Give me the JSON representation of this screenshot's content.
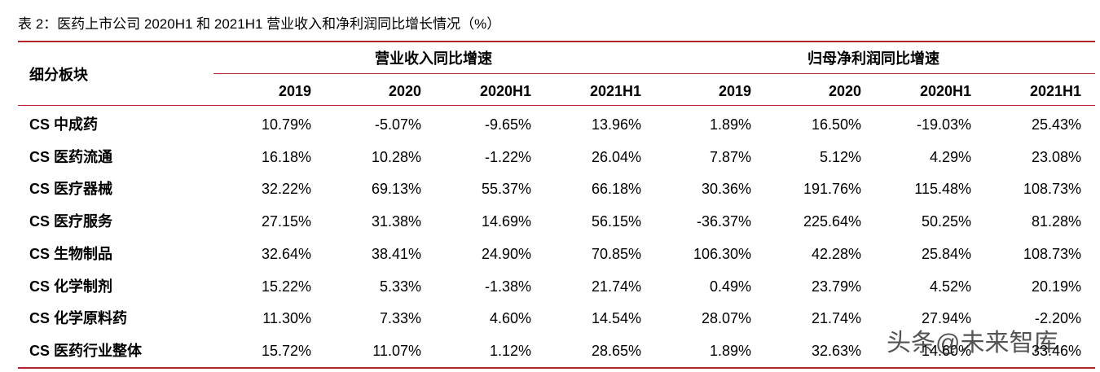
{
  "title": "表 2：医药上市公司 2020H1 和 2021H1 营业收入和净利润同比增长情况（%）",
  "table": {
    "corner_header": "细分板块",
    "group_headers": [
      "营业收入同比增速",
      "归母净利润同比增速"
    ],
    "sub_headers": [
      "2019",
      "2020",
      "2020H1",
      "2021H1",
      "2019",
      "2020",
      "2020H1",
      "2021H1"
    ],
    "rows": [
      [
        "CS 中成药",
        "10.79%",
        "-5.07%",
        "-9.65%",
        "13.96%",
        "1.89%",
        "16.50%",
        "-19.03%",
        "25.43%"
      ],
      [
        "CS 医药流通",
        "16.18%",
        "10.28%",
        "-1.22%",
        "26.04%",
        "7.87%",
        "5.12%",
        "4.29%",
        "23.08%"
      ],
      [
        "CS 医疗器械",
        "32.22%",
        "69.13%",
        "55.37%",
        "66.18%",
        "30.36%",
        "191.76%",
        "115.48%",
        "108.73%"
      ],
      [
        "CS 医疗服务",
        "27.15%",
        "31.38%",
        "14.69%",
        "56.15%",
        "-36.37%",
        "225.64%",
        "50.25%",
        "81.28%"
      ],
      [
        "CS 生物制品",
        "32.64%",
        "38.41%",
        "24.90%",
        "70.85%",
        "106.30%",
        "42.28%",
        "25.84%",
        "108.73%"
      ],
      [
        "CS 化学制剂",
        "15.22%",
        "5.33%",
        "-1.38%",
        "21.74%",
        "0.49%",
        "23.79%",
        "4.52%",
        "20.19%"
      ],
      [
        "CS 化学原料药",
        "11.30%",
        "7.33%",
        "4.60%",
        "14.54%",
        "28.07%",
        "21.74%",
        "27.94%",
        "-2.20%"
      ],
      [
        "CS 医药行业整体",
        "15.72%",
        "11.07%",
        "1.12%",
        "28.65%",
        "1.89%",
        "32.63%",
        "14.60%",
        "33.46%"
      ]
    ]
  },
  "watermark": "头条@未来智库"
}
